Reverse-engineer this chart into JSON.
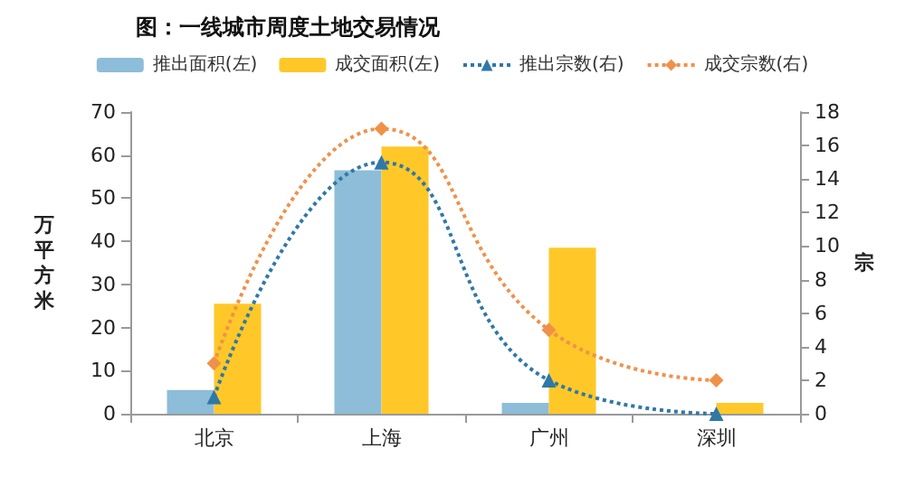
{
  "chart_data": {
    "type": "bar",
    "title": "图：一线城市周度土地交易情况",
    "categories": [
      "北京",
      "上海",
      "广州",
      "深圳"
    ],
    "ylabel": "万平方米",
    "y2label": "宗",
    "ylim": [
      0,
      70
    ],
    "yticks": [
      0,
      10,
      20,
      30,
      40,
      50,
      60,
      70
    ],
    "y2lim": [
      0,
      18
    ],
    "y2ticks": [
      0,
      2,
      4,
      6,
      8,
      10,
      12,
      14,
      16,
      18
    ],
    "grid": false,
    "legend": "top",
    "series": [
      {
        "name": "推出面积(左)",
        "color": "#8dbdd8",
        "values": [
          5.5,
          56.5,
          2.5,
          0
        ]
      },
      {
        "name": "成交面积(左)",
        "color": "#ffc828",
        "values": [
          25.5,
          62,
          38.5,
          2.5
        ]
      },
      {
        "name": "推出宗数(右)",
        "type": "line",
        "axis": "y2",
        "color": "#2f78a8",
        "marker": "triangle",
        "line_style": "dotted",
        "values": [
          1,
          15,
          2,
          0
        ]
      },
      {
        "name": "成交宗数(右)",
        "type": "line",
        "axis": "y2",
        "color": "#f0914a",
        "marker": "diamond",
        "line_style": "dotted",
        "values": [
          3,
          17,
          5,
          2
        ]
      }
    ]
  }
}
